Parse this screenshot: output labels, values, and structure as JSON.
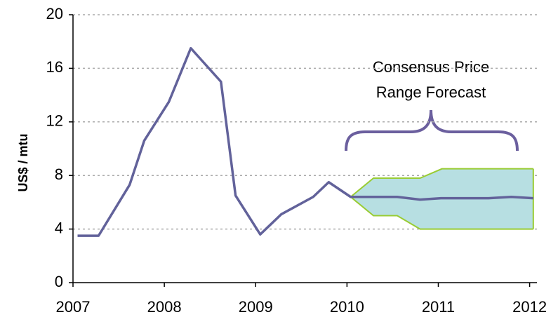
{
  "chart_data": {
    "type": "line",
    "ylabel": "US$ / mtu",
    "annotation": [
      "Consensus Price",
      "Range Forecast"
    ],
    "x": [
      2007.05,
      2007.28,
      2007.62,
      2007.78,
      2008.05,
      2008.29,
      2008.62,
      2008.78,
      2009.05,
      2009.28,
      2009.63,
      2009.8,
      2010.04,
      2010.55,
      2010.8,
      2011.03,
      2011.55,
      2011.8,
      2012.04
    ],
    "series": [
      {
        "color": "#62629a",
        "values": [
          3.5,
          3.5,
          7.3,
          10.6,
          13.5,
          17.5,
          15.0,
          6.5,
          3.6,
          5.1,
          6.4,
          7.5,
          6.4,
          6.4,
          6.2,
          6.3,
          6.3,
          6.4,
          6.3
        ]
      }
    ],
    "band": {
      "color": "#b7dfe2",
      "edge_color": "#99cc33",
      "x": [
        2010.04,
        2010.29,
        2010.55,
        2010.8,
        2011.04,
        2012.04
      ],
      "upper": [
        6.4,
        7.8,
        7.8,
        7.8,
        8.5,
        8.5
      ],
      "lower": [
        6.4,
        5.0,
        5.0,
        4.0,
        4.0,
        4.0
      ]
    },
    "xlim": [
      2007,
      2012.08
    ],
    "xticks": [
      2007,
      2008,
      2009,
      2010,
      2011,
      2012
    ],
    "ylim": [
      0,
      20
    ],
    "yticks": [
      0,
      4,
      8,
      12,
      16,
      20
    ],
    "grid": true
  }
}
